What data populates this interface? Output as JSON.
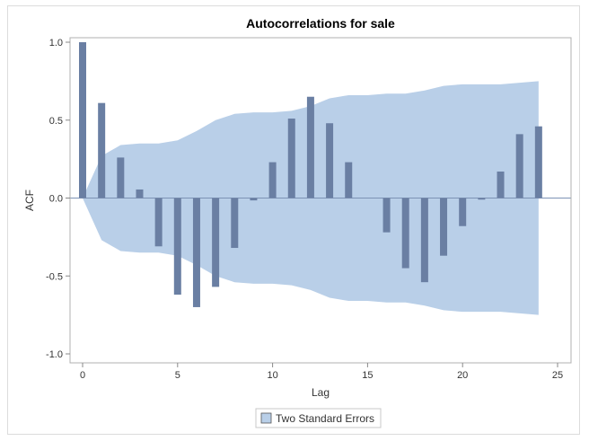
{
  "chart_data": {
    "type": "bar",
    "title": "Autocorrelations for sale",
    "xlabel": "Lag",
    "ylabel": "ACF",
    "xlim": [
      -0.6,
      25.6
    ],
    "ylim": [
      -1.05,
      1.05
    ],
    "xticks": [
      0,
      5,
      10,
      15,
      20,
      25
    ],
    "yticks": [
      1.0,
      0.5,
      0.0,
      -0.5,
      -1.0
    ],
    "ytick_labels": [
      "1.0",
      "0.5",
      "0.0",
      "-0.5",
      "-1.0"
    ],
    "grid": false,
    "legend_position": "bottom",
    "legend": [
      "Two Standard Errors"
    ],
    "x": [
      0,
      1,
      2,
      3,
      4,
      5,
      6,
      7,
      8,
      9,
      10,
      11,
      12,
      13,
      14,
      15,
      16,
      17,
      18,
      19,
      20,
      21,
      22,
      23,
      24
    ],
    "acf": [
      1.0,
      0.61,
      0.26,
      0.055,
      -0.31,
      -0.62,
      -0.7,
      -0.57,
      -0.32,
      -0.015,
      0.23,
      0.51,
      0.65,
      0.48,
      0.23,
      0.0,
      -0.22,
      -0.45,
      -0.54,
      -0.37,
      -0.18,
      -0.01,
      0.17,
      0.41,
      0.46
    ],
    "two_std_errors": [
      0.0,
      0.27,
      0.34,
      0.35,
      0.35,
      0.37,
      0.43,
      0.5,
      0.54,
      0.55,
      0.55,
      0.56,
      0.59,
      0.64,
      0.66,
      0.66,
      0.67,
      0.67,
      0.69,
      0.72,
      0.73,
      0.73,
      0.73,
      0.74,
      0.75
    ],
    "colors": {
      "bar": "#6a7fa3",
      "band": "#b9cfe8",
      "axis": "#a0a0a0"
    }
  }
}
